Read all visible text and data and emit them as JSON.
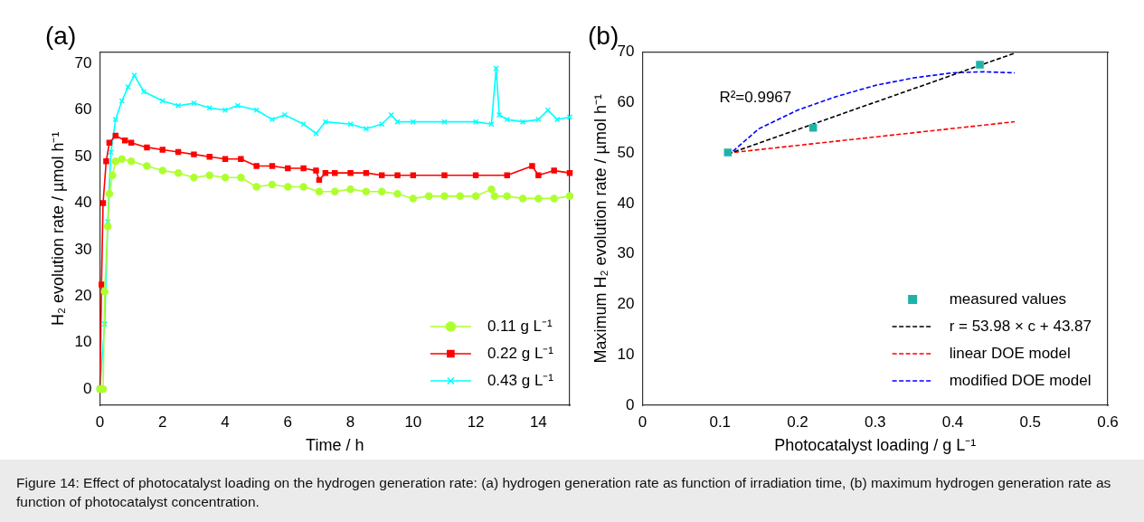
{
  "chart_data": [
    {
      "type": "line",
      "title": "(a)",
      "annotations": [
        "Figure 14: Effect of photocatalyst loading on the hydrogen generation rate: (a) hydrogen generation rate as function of irradiation time, (b) maximum hydrogen generation rate as function of photocatalyst concentration."
      ],
      "xlabel": "Time / h",
      "ylabel": "H₂ evolution rate / µmol h⁻¹",
      "xlim": [
        0,
        15
      ],
      "xticks": [
        0,
        2,
        4,
        6,
        8,
        10,
        12,
        14
      ],
      "ylim": [
        -3.5,
        72.5
      ],
      "yticks": [
        0,
        10,
        20,
        30,
        40,
        50,
        60,
        70
      ],
      "grid": false,
      "legend": "bottom right",
      "series": [
        {
          "name": "0.11 g L⁻¹",
          "color": "#adff2f",
          "marker": "circle",
          "x": [
            0,
            0.1,
            0.15,
            0.25,
            0.3,
            0.4,
            0.5,
            0.7,
            1,
            1.5,
            2,
            2.5,
            3,
            3.5,
            4,
            4.5,
            5,
            5.5,
            6,
            6.5,
            7,
            7.5,
            8,
            8.5,
            9,
            9.5,
            10,
            10.5,
            11,
            11.5,
            12,
            12.5,
            12.6,
            13,
            13.5,
            14,
            14.5,
            15
          ],
          "values": [
            0,
            0,
            21,
            35,
            42,
            46,
            49,
            49.5,
            49,
            48,
            47,
            46.5,
            45.5,
            46,
            45.5,
            45.5,
            43.5,
            44,
            43.5,
            43.5,
            42.5,
            42.5,
            43,
            42.5,
            42.5,
            42,
            41,
            41.5,
            41.5,
            41.5,
            41.5,
            43,
            41.5,
            41.5,
            41,
            41,
            41,
            41.5
          ]
        },
        {
          "name": "0.22 g L⁻¹",
          "color": "#ff0000",
          "marker": "square",
          "x": [
            0,
            0.05,
            0.1,
            0.2,
            0.3,
            0.5,
            0.8,
            1,
            1.5,
            2,
            2.5,
            3,
            3.5,
            4,
            4.5,
            5,
            5.5,
            6,
            6.5,
            6.9,
            7,
            7.2,
            7.5,
            8,
            8.5,
            9,
            9.5,
            10,
            11,
            12,
            13,
            13.8,
            14,
            14.5,
            15
          ],
          "values": [
            0,
            22.5,
            40,
            49,
            53,
            54.5,
            53.5,
            53,
            52,
            51.5,
            51,
            50.5,
            50,
            49.5,
            49.5,
            48,
            48,
            47.5,
            47.5,
            47,
            45,
            46.5,
            46.5,
            46.5,
            46.5,
            46,
            46,
            46,
            46,
            46,
            46,
            48,
            46,
            47,
            46.5
          ]
        },
        {
          "name": "0.43 g L⁻¹",
          "color": "#00ffff",
          "marker": "cross",
          "x": [
            0,
            0.15,
            0.25,
            0.35,
            0.5,
            0.7,
            0.9,
            1.1,
            1.4,
            2,
            2.5,
            3,
            3.5,
            4,
            4.4,
            5,
            5.5,
            5.9,
            6.5,
            6.9,
            7.2,
            8,
            8.5,
            9,
            9.3,
            9.5,
            10,
            11,
            12,
            12.5,
            12.65,
            12.75,
            13,
            13.5,
            14,
            14.3,
            14.6,
            15
          ],
          "values": [
            0,
            14,
            36,
            51,
            58,
            62,
            65,
            67.5,
            64,
            62,
            61,
            61.5,
            60.5,
            60,
            61,
            60,
            58,
            59,
            57,
            55,
            57.5,
            57,
            56,
            57,
            59,
            57.5,
            57.5,
            57.5,
            57.5,
            57,
            69,
            59,
            58,
            57.5,
            58,
            60,
            58,
            58.5
          ]
        }
      ]
    },
    {
      "type": "scatter",
      "title": "(b)",
      "xlabel": "Photocatalyst loading / g L⁻¹",
      "ylabel": "Maximum H₂ evolution rate / µmol h⁻¹",
      "xlim": [
        0,
        0.6
      ],
      "xticks": [
        0,
        0.1,
        0.2,
        0.3,
        0.4,
        0.5,
        0.6
      ],
      "ylim": [
        0,
        70
      ],
      "yticks": [
        0,
        10,
        20,
        30,
        40,
        50,
        60,
        70
      ],
      "grid": false,
      "legend": "bottom right",
      "annotations": [
        "R²=0.9967"
      ],
      "series": [
        {
          "name": "measured values",
          "color": "#20b2aa",
          "marker": "square",
          "x": [
            0.11,
            0.22,
            0.435
          ],
          "values": [
            50.1,
            55,
            67.5
          ]
        },
        {
          "name": "r = 53.98 × c + 43.87",
          "type": "line",
          "color": "#000000",
          "marker": "none",
          "line_style": "dashed",
          "x": [
            0.11,
            0.48
          ],
          "values": [
            49.8,
            69.8
          ]
        },
        {
          "name": "linear DOE model",
          "type": "line",
          "color": "#ff0000",
          "marker": "none",
          "line_style": "dashed",
          "x": [
            0.11,
            0.48
          ],
          "values": [
            50,
            56.2
          ]
        },
        {
          "name": "modified DOE model",
          "type": "line",
          "color": "#0000ff",
          "marker": "none",
          "line_style": "dashed",
          "x": [
            0.11,
            0.15,
            0.2,
            0.25,
            0.3,
            0.35,
            0.4,
            0.44,
            0.48
          ],
          "values": [
            49.5,
            54.8,
            58.5,
            61.2,
            63.4,
            64.9,
            65.9,
            66.1,
            65.9
          ]
        }
      ]
    }
  ]
}
